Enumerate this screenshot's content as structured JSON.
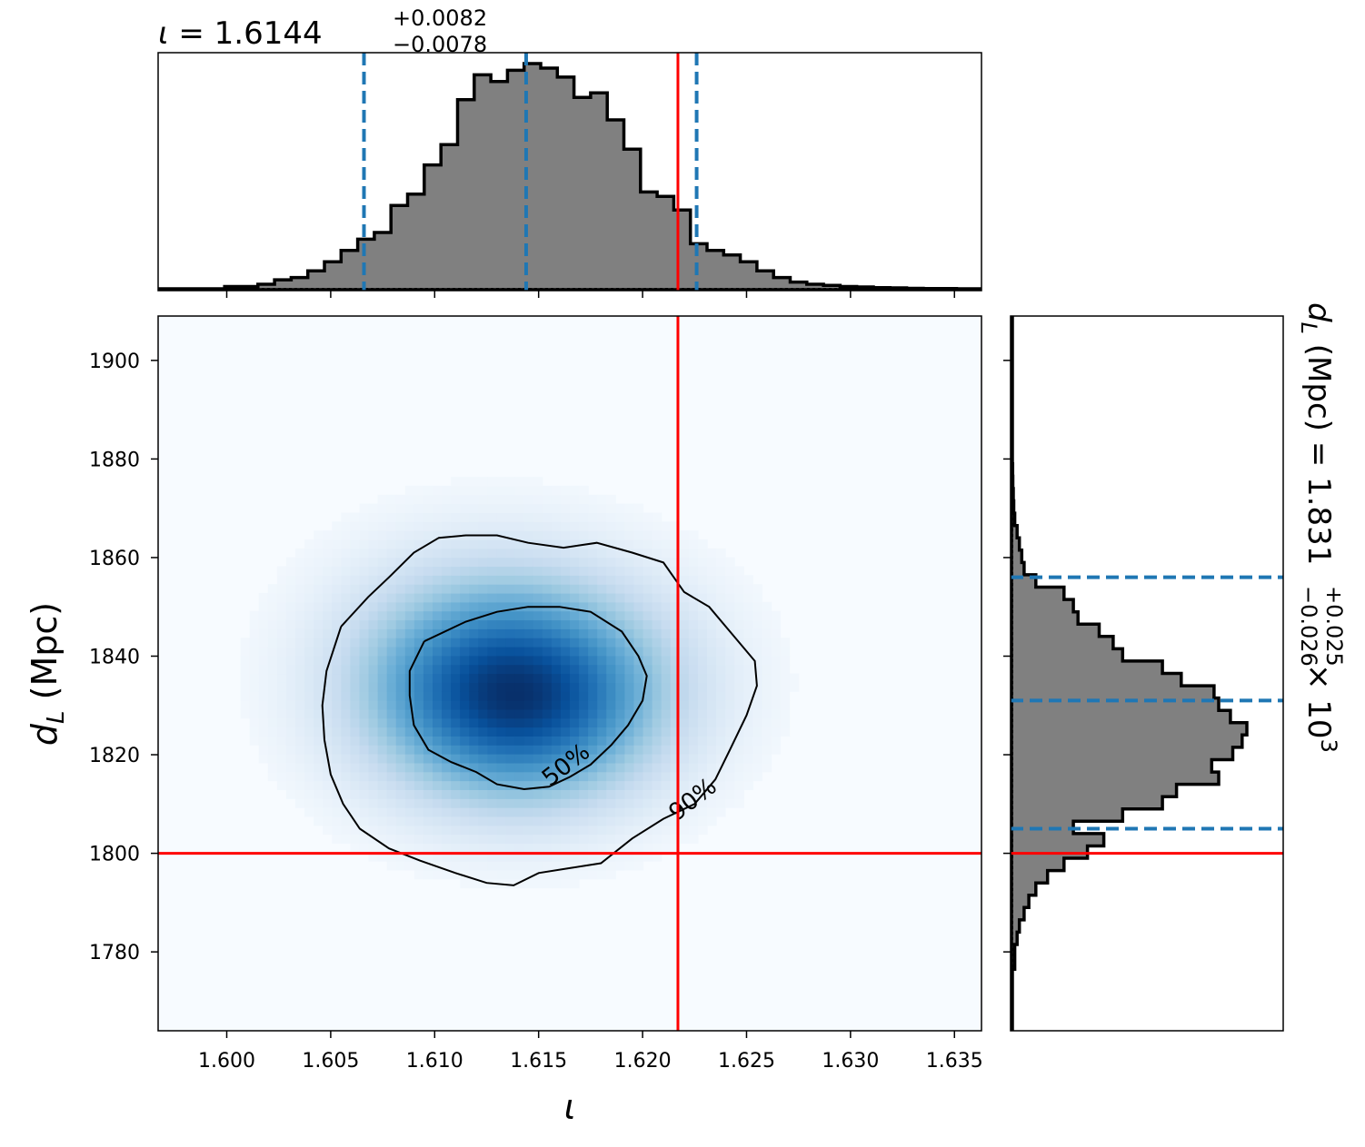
{
  "chart_data": {
    "type": "heatmap",
    "subtype": "corner-plot",
    "parameters": [
      "ι",
      "d_L"
    ],
    "marginal_x": {
      "type": "histogram",
      "title": {
        "symbol": "ι",
        "median": "1.6144",
        "upper": "+0.0082",
        "lower": "−0.0078"
      },
      "xlim": [
        1.5967,
        1.6363
      ],
      "bins": [
        1.5967,
        1.5975,
        1.5983,
        1.5991,
        1.5999,
        1.6007,
        1.6015,
        1.6023,
        1.6031,
        1.6039,
        1.6047,
        1.6055,
        1.6063,
        1.6071,
        1.6079,
        1.6087,
        1.6095,
        1.6103,
        1.6111,
        1.6119,
        1.6127,
        1.6135,
        1.6143,
        1.6151,
        1.6159,
        1.6167,
        1.6175,
        1.6183,
        1.6191,
        1.6199,
        1.6207,
        1.6215,
        1.6223,
        1.6231,
        1.6239,
        1.6247,
        1.6255,
        1.6263,
        1.6271,
        1.6279,
        1.6287,
        1.6295,
        1.6303,
        1.6311,
        1.6319,
        1.6327,
        1.6335,
        1.6343,
        1.6351,
        1.6359,
        1.6363
      ],
      "counts": [
        0.0,
        0.0,
        0.0,
        0.0,
        0.01,
        0.01,
        0.02,
        0.04,
        0.05,
        0.08,
        0.12,
        0.17,
        0.22,
        0.25,
        0.37,
        0.42,
        0.55,
        0.64,
        0.84,
        0.95,
        0.92,
        0.97,
        1.0,
        0.98,
        0.94,
        0.85,
        0.87,
        0.75,
        0.62,
        0.43,
        0.41,
        0.35,
        0.2,
        0.17,
        0.15,
        0.12,
        0.08,
        0.05,
        0.03,
        0.02,
        0.015,
        0.01,
        0.008,
        0.005,
        0.004,
        0.002,
        0.001,
        0.001,
        0.0,
        0.0
      ],
      "median_line": 1.6144,
      "interval_lines": [
        1.6066,
        1.6226
      ],
      "truth_line": 1.6217,
      "ticks": [
        1.6,
        1.605,
        1.61,
        1.615,
        1.62,
        1.625,
        1.63,
        1.635
      ]
    },
    "marginal_y": {
      "type": "histogram",
      "title": {
        "symbol": "d_L (Mpc)",
        "median": "1.831",
        "upper": "+0.025",
        "lower": "−0.026",
        "scale": "× 10",
        "exponent": "3"
      },
      "ylim": [
        1764,
        1909
      ],
      "bins": [
        1764,
        1766.5,
        1769,
        1771.5,
        1774,
        1776.5,
        1779,
        1781.5,
        1784,
        1786.5,
        1789,
        1791.5,
        1794,
        1796.5,
        1799,
        1801.5,
        1804,
        1806.5,
        1809,
        1811.5,
        1814,
        1816.5,
        1819,
        1821.5,
        1824,
        1826.5,
        1829,
        1831.5,
        1834,
        1836.5,
        1839,
        1841.5,
        1844,
        1846.5,
        1849,
        1851.5,
        1854,
        1856.5,
        1859,
        1861.5,
        1864,
        1866.5,
        1869,
        1871.5,
        1874,
        1876.5,
        1879,
        1881.5,
        1884,
        1886.5,
        1889,
        1909
      ],
      "counts": [
        0.0,
        0.0,
        0.0,
        0.0,
        0.0,
        0.01,
        0.01,
        0.02,
        0.03,
        0.05,
        0.07,
        0.1,
        0.15,
        0.22,
        0.32,
        0.39,
        0.26,
        0.47,
        0.64,
        0.7,
        0.88,
        0.85,
        0.94,
        0.98,
        1.0,
        0.93,
        0.88,
        0.86,
        0.72,
        0.64,
        0.47,
        0.43,
        0.37,
        0.28,
        0.26,
        0.22,
        0.1,
        0.05,
        0.04,
        0.03,
        0.02,
        0.01,
        0.006,
        0.004,
        0.002,
        0.001,
        0.0,
        0.0,
        0.0,
        0.0,
        0.0
      ],
      "median_line": 1831,
      "interval_lines": [
        1805,
        1856
      ],
      "truth_line": 1800
    },
    "joint": {
      "type": "heatmap",
      "colormap": "Blues",
      "xlim": [
        1.5967,
        1.6363
      ],
      "ylim": [
        1764,
        1909
      ],
      "xlabel": "ι",
      "ylabel": "d_L (Mpc)",
      "xticks": [
        1.6,
        1.605,
        1.61,
        1.615,
        1.62,
        1.625,
        1.63,
        1.635
      ],
      "xtick_labels": [
        "1.600",
        "1.605",
        "1.610",
        "1.615",
        "1.620",
        "1.625",
        "1.630",
        "1.635"
      ],
      "yticks": [
        1780,
        1800,
        1820,
        1840,
        1860,
        1880,
        1900
      ],
      "ytick_labels": [
        "1780",
        "1800",
        "1820",
        "1840",
        "1860",
        "1880",
        "1900"
      ],
      "density_peaks": [
        {
          "x": 1.6125,
          "y": 1839,
          "sx": 0.0045,
          "sy": 15,
          "w": 0.9
        },
        {
          "x": 1.6145,
          "y": 1827,
          "sx": 0.004,
          "sy": 13,
          "w": 1.0
        },
        {
          "x": 1.6165,
          "y": 1835,
          "sx": 0.0045,
          "sy": 14,
          "w": 0.8
        },
        {
          "x": 1.6105,
          "y": 1832,
          "sx": 0.004,
          "sy": 14,
          "w": 0.5
        }
      ],
      "contours": [
        {
          "label": "50%",
          "points": [
            [
              1.6095,
              1843.0
            ],
            [
              1.6115,
              1847.0
            ],
            [
              1.613,
              1849.0
            ],
            [
              1.6145,
              1850.0
            ],
            [
              1.616,
              1850.0
            ],
            [
              1.6175,
              1849.0
            ],
            [
              1.619,
              1845.0
            ],
            [
              1.6198,
              1840.0
            ],
            [
              1.6202,
              1836.0
            ],
            [
              1.62,
              1831.0
            ],
            [
              1.6193,
              1826.0
            ],
            [
              1.6185,
              1822.0
            ],
            [
              1.6175,
              1818.0
            ],
            [
              1.6165,
              1815.5
            ],
            [
              1.6155,
              1813.5
            ],
            [
              1.6143,
              1813.0
            ],
            [
              1.613,
              1814.0
            ],
            [
              1.612,
              1816.5
            ],
            [
              1.6108,
              1818.5
            ],
            [
              1.6097,
              1821.0
            ],
            [
              1.609,
              1826.0
            ],
            [
              1.6088,
              1832.0
            ],
            [
              1.6088,
              1837.0
            ],
            [
              1.6095,
              1843.0
            ]
          ],
          "label_pos": [
            1.6163,
            1818.0
          ],
          "label_angle": -38
        },
        {
          "label": "90%",
          "points": [
            [
              1.6055,
              1846.0
            ],
            [
              1.6068,
              1852.0
            ],
            [
              1.6078,
              1856.0
            ],
            [
              1.609,
              1861.0
            ],
            [
              1.6102,
              1864.0
            ],
            [
              1.6115,
              1864.5
            ],
            [
              1.613,
              1864.5
            ],
            [
              1.6145,
              1863.0
            ],
            [
              1.6162,
              1862.0
            ],
            [
              1.6178,
              1863.0
            ],
            [
              1.6195,
              1861.0
            ],
            [
              1.621,
              1859.0
            ],
            [
              1.622,
              1853.0
            ],
            [
              1.6232,
              1850.0
            ],
            [
              1.6242,
              1845.0
            ],
            [
              1.6254,
              1839.0
            ],
            [
              1.6255,
              1834.0
            ],
            [
              1.625,
              1828.0
            ],
            [
              1.6242,
              1821.0
            ],
            [
              1.6235,
              1815.0
            ],
            [
              1.6225,
              1810.0
            ],
            [
              1.621,
              1807.0
            ],
            [
              1.6195,
              1803.0
            ],
            [
              1.618,
              1798.0
            ],
            [
              1.6165,
              1797.0
            ],
            [
              1.615,
              1796.0
            ],
            [
              1.6138,
              1793.5
            ],
            [
              1.6125,
              1794.0
            ],
            [
              1.611,
              1796.0
            ],
            [
              1.6093,
              1798.5
            ],
            [
              1.6078,
              1801.0
            ],
            [
              1.6064,
              1805.0
            ],
            [
              1.6056,
              1810.0
            ],
            [
              1.605,
              1816.0
            ],
            [
              1.6047,
              1823.0
            ],
            [
              1.6046,
              1830.0
            ],
            [
              1.6048,
              1837.0
            ],
            [
              1.6055,
              1846.0
            ]
          ],
          "label_pos": [
            1.6224,
            1811.0
          ],
          "label_angle": -38
        }
      ],
      "truth": {
        "x": 1.6217,
        "y": 1800
      }
    },
    "colors": {
      "hist_fill": "#808080",
      "hist_edge": "#000000",
      "quantile": "#1f77b4",
      "truth": "#ff0000",
      "contour": "#000000"
    }
  }
}
